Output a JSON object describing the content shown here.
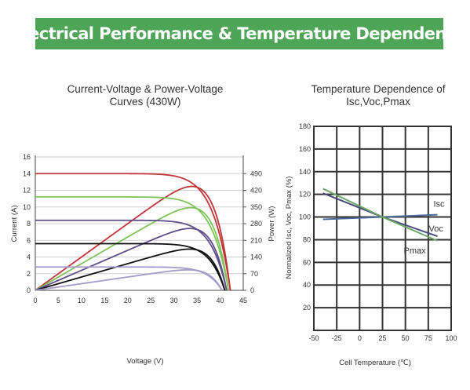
{
  "banner": {
    "title": "Electrical Performance & Temperature Dependence"
  },
  "colors": {
    "banner": "#4fa557",
    "red": "#c0343a",
    "green": "#80c35a",
    "purple": "#5e4f8a",
    "black": "#111111",
    "lavender": "#a49bc8"
  },
  "chart_data": [
    {
      "type": "line",
      "title": [
        "Current-Voltage & Power-Voltage",
        "Curves (430W)"
      ],
      "xlabel": "Voltage (V)",
      "ylabel": "Current (A)",
      "y2label": "Power (W)",
      "xlim": [
        0,
        45
      ],
      "ylim": [
        0,
        16
      ],
      "y2lim": [
        0,
        560
      ],
      "xticks": [
        "0",
        "5",
        "10",
        "15",
        "20",
        "25",
        "30",
        "35",
        "40",
        "45"
      ],
      "yticks": [
        "0",
        "2",
        "4",
        "6",
        "8",
        "10",
        "12",
        "14",
        "16"
      ],
      "y2ticks": [
        "0",
        "70",
        "140",
        "210",
        "280",
        "350",
        "420",
        "490"
      ],
      "grid": "horizontal",
      "series": [
        {
          "color": "red",
          "isc": 14.0,
          "imp": 12.2,
          "vmp": 35.3,
          "voc": 42.2,
          "pmax": 430
        },
        {
          "color": "green",
          "isc": 11.2,
          "imp": 9.7,
          "vmp": 35.2,
          "voc": 41.8,
          "pmax": 342
        },
        {
          "color": "purple",
          "isc": 8.4,
          "imp": 7.3,
          "vmp": 35.0,
          "voc": 41.4,
          "pmax": 256
        },
        {
          "color": "black",
          "isc": 5.6,
          "imp": 4.9,
          "vmp": 34.8,
          "voc": 41.0,
          "pmax": 170
        },
        {
          "color": "lavender",
          "isc": 2.8,
          "imp": 2.45,
          "vmp": 34.5,
          "voc": 40.4,
          "pmax": 85
        }
      ]
    },
    {
      "type": "line",
      "title": [
        "Temperature Dependence of",
        "Isc,Voc,Pmax"
      ],
      "xlabel": "Cell Temperature (℃)",
      "ylabel": "Normalized Isc, Voc, Pmax (%)",
      "xlim": [
        -50,
        100
      ],
      "ylim": [
        0,
        180
      ],
      "xticks": [
        "-50",
        "-25",
        "0",
        "25",
        "50",
        "75",
        "100"
      ],
      "yticks": [
        "20",
        "40",
        "60",
        "80",
        "100",
        "120",
        "140",
        "160",
        "180"
      ],
      "grid": "both",
      "series": [
        {
          "name": "Isc",
          "color": "#4a6a9a",
          "x": [
            -40,
            25,
            85
          ],
          "y": [
            98,
            100,
            102
          ]
        },
        {
          "name": "Voc",
          "color": "#4a4a7a",
          "x": [
            -40,
            25,
            85
          ],
          "y": [
            121,
            100,
            83
          ]
        },
        {
          "name": "Pmax",
          "color": "#6aa86a",
          "x": [
            -40,
            25,
            85
          ],
          "y": [
            125,
            100,
            79
          ]
        }
      ]
    }
  ]
}
